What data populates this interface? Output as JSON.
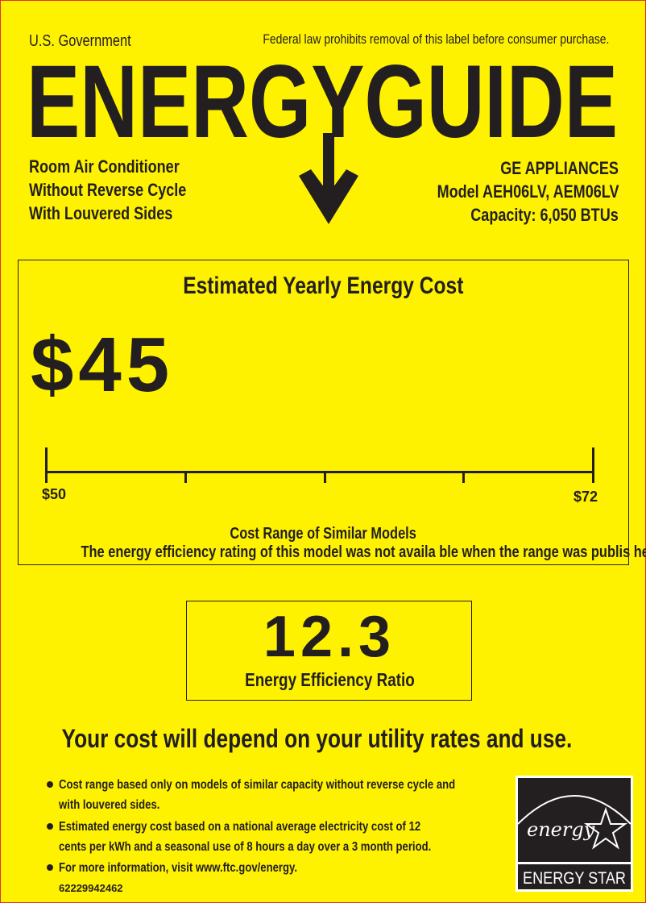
{
  "header": {
    "government": "U.S. Government",
    "notice": "Federal law prohibits removal of this label before consumer purchase.",
    "title": "ENERGYGUIDE"
  },
  "product": {
    "lines": [
      "Room Air Conditioner",
      "Without Reverse Cycle",
      "With Louvered Sides"
    ]
  },
  "manufacturer": {
    "brand": "GE APPLIANCES",
    "model": "Model AEH06LV, AEM06LV",
    "capacity": "Capacity: 6,050 BTUs"
  },
  "cost": {
    "heading": "Estimated Yearly Energy Cost",
    "value": "$45",
    "range_min": "$50",
    "range_max": "$72",
    "range_label": "Cost Range of Similar Models",
    "range_note": "The energy efficiency rating of this model was not availa ble when the range was publis hed"
  },
  "efficiency": {
    "value": "12.3",
    "label": "Energy Efficiency Ratio"
  },
  "footer": {
    "headline": "Your cost will depend on your utility rates and use.",
    "bullets": [
      [
        "Cost range based only on models of similar capacity without reverse cycle and",
        "with louvered sides."
      ],
      [
        "Estimated energy cost based on a national average electricity cost of 12",
        "cents per kWh and a seasonal use of 8 hours a day over a 3 month period."
      ],
      [
        "For more information, visit www.ftc.gov/energy."
      ]
    ],
    "label_number": "62229942462"
  },
  "energy_star": {
    "script": "energy",
    "wordmark": "ENERGY STAR"
  },
  "colors": {
    "background": "#fff200",
    "ink": "#231f20",
    "border": "#d9342b"
  }
}
